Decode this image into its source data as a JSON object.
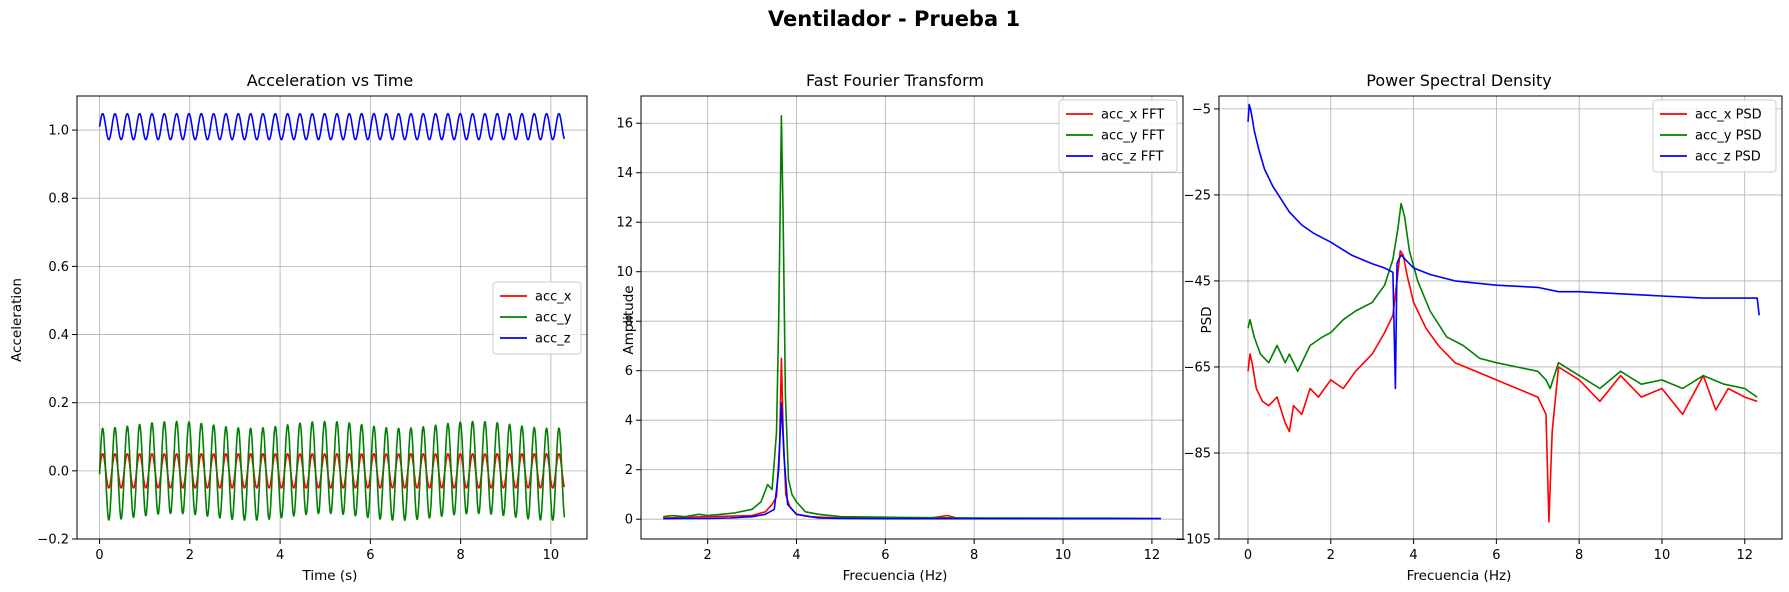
{
  "figure": {
    "suptitle": "Ventilador - Prueba 1"
  },
  "colors": {
    "x": "#ff0000",
    "y": "#008000",
    "z": "#0000ff"
  },
  "chart_data": [
    {
      "type": "line",
      "id": "time",
      "title": "Acceleration vs Time",
      "xlabel": "Time (s)",
      "ylabel": "Acceleration",
      "xlim": [
        -0.5,
        10.8
      ],
      "ylim": [
        -0.2,
        1.1
      ],
      "xticks": [
        0,
        2,
        4,
        6,
        8,
        10
      ],
      "yticks": [
        -0.2,
        0.0,
        0.2,
        0.4,
        0.6,
        0.8,
        1.0
      ],
      "ytick_labels": [
        "−0.2",
        "0.0",
        "0.2",
        "0.4",
        "0.6",
        "0.8",
        "1.0"
      ],
      "grid": true,
      "legend_position": "center-right",
      "signal": {
        "t_start": 0.0,
        "t_end": 10.3,
        "frequency_hz": 3.66
      },
      "series": [
        {
          "name": "acc_x",
          "color_key": "x",
          "offset": 0.0,
          "amplitude": 0.05
        },
        {
          "name": "acc_y",
          "color_key": "y",
          "offset": 0.0,
          "amplitude": 0.135
        },
        {
          "name": "acc_z",
          "color_key": "z",
          "offset": 1.01,
          "amplitude": 0.038
        }
      ]
    },
    {
      "type": "line",
      "id": "fft",
      "title": "Fast Fourier Transform",
      "xlabel": "Frecuencia (Hz)",
      "ylabel": "Amplitude",
      "xlim": [
        0.5,
        12.7
      ],
      "ylim": [
        -0.8,
        17.1
      ],
      "xticks": [
        2,
        4,
        6,
        8,
        10,
        12
      ],
      "yticks": [
        0,
        2,
        4,
        6,
        8,
        10,
        12,
        14,
        16
      ],
      "grid": true,
      "legend_position": "top-right",
      "series": [
        {
          "name": "acc_x FFT",
          "color_key": "x",
          "x": [
            1.0,
            1.5,
            2.0,
            2.5,
            3.0,
            3.3,
            3.45,
            3.55,
            3.62,
            3.66,
            3.7,
            3.76,
            3.85,
            4.0,
            4.3,
            5.0,
            6.0,
            7.0,
            7.4,
            7.6,
            8.0,
            9.0,
            10.0,
            11.0,
            12.2
          ],
          "y": [
            0.05,
            0.08,
            0.1,
            0.12,
            0.15,
            0.3,
            0.6,
            0.9,
            3.0,
            6.5,
            3.5,
            1.0,
            0.5,
            0.2,
            0.1,
            0.05,
            0.04,
            0.04,
            0.15,
            0.05,
            0.04,
            0.03,
            0.03,
            0.03,
            0.02
          ]
        },
        {
          "name": "acc_y FFT",
          "color_key": "y",
          "x": [
            1.0,
            1.2,
            1.5,
            1.8,
            2.0,
            2.3,
            2.6,
            3.0,
            3.2,
            3.35,
            3.45,
            3.55,
            3.6,
            3.66,
            3.7,
            3.75,
            3.82,
            3.9,
            4.0,
            4.2,
            4.5,
            5.0,
            6.0,
            7.0,
            8.0,
            9.0,
            10.0,
            11.0,
            12.2
          ],
          "y": [
            0.1,
            0.15,
            0.1,
            0.2,
            0.15,
            0.2,
            0.25,
            0.4,
            0.7,
            1.4,
            1.2,
            3.5,
            8.0,
            16.3,
            12.0,
            5.0,
            1.6,
            1.0,
            0.7,
            0.3,
            0.2,
            0.1,
            0.08,
            0.06,
            0.05,
            0.05,
            0.04,
            0.04,
            0.03
          ]
        },
        {
          "name": "acc_z FFT",
          "color_key": "z",
          "x": [
            1.0,
            1.5,
            2.0,
            2.5,
            3.0,
            3.3,
            3.5,
            3.6,
            3.66,
            3.72,
            3.8,
            4.0,
            4.5,
            5.0,
            6.0,
            8.0,
            10.0,
            12.2
          ],
          "y": [
            0.02,
            0.03,
            0.03,
            0.05,
            0.1,
            0.2,
            0.4,
            2.0,
            4.7,
            2.5,
            0.6,
            0.2,
            0.05,
            0.03,
            0.02,
            0.02,
            0.02,
            0.02
          ]
        }
      ]
    },
    {
      "type": "line",
      "id": "psd",
      "title": "Power Spectral Density",
      "xlabel": "Frecuencia (Hz)",
      "ylabel": "PSD",
      "xlim": [
        -0.7,
        12.9
      ],
      "ylim": [
        -105,
        -2
      ],
      "xticks": [
        0,
        2,
        4,
        6,
        8,
        10,
        12
      ],
      "yticks": [
        -105,
        -85,
        -65,
        -45,
        -25,
        -5
      ],
      "ytick_labels": [
        "−105",
        "−85",
        "−65",
        "−45",
        "−25",
        "−5"
      ],
      "grid": true,
      "legend_position": "top-right",
      "series": [
        {
          "name": "acc_x PSD",
          "color_key": "x",
          "x": [
            0.0,
            0.05,
            0.1,
            0.2,
            0.35,
            0.5,
            0.7,
            0.9,
            1.0,
            1.1,
            1.3,
            1.5,
            1.7,
            2.0,
            2.3,
            2.6,
            3.0,
            3.3,
            3.5,
            3.6,
            3.68,
            3.75,
            3.85,
            4.0,
            4.3,
            4.6,
            5.0,
            5.5,
            6.0,
            6.5,
            7.0,
            7.2,
            7.27,
            7.35,
            7.5,
            8.0,
            8.5,
            9.0,
            9.5,
            10.0,
            10.5,
            11.0,
            11.3,
            11.6,
            12.0,
            12.3
          ],
          "y": [
            -66,
            -62,
            -64,
            -70,
            -73,
            -74,
            -72,
            -78,
            -80,
            -74,
            -76,
            -70,
            -72,
            -68,
            -70,
            -66,
            -62,
            -57,
            -53,
            -45,
            -38,
            -39,
            -44,
            -50,
            -56,
            -60,
            -64,
            -66,
            -68,
            -70,
            -72,
            -76,
            -101,
            -80,
            -65,
            -68,
            -73,
            -67,
            -72,
            -70,
            -76,
            -67,
            -75,
            -70,
            -72,
            -73
          ]
        },
        {
          "name": "acc_y PSD",
          "color_key": "y",
          "x": [
            0.0,
            0.05,
            0.15,
            0.3,
            0.5,
            0.7,
            0.9,
            1.0,
            1.2,
            1.5,
            1.8,
            2.0,
            2.3,
            2.6,
            3.0,
            3.3,
            3.5,
            3.62,
            3.7,
            3.78,
            3.9,
            4.1,
            4.4,
            4.8,
            5.2,
            5.6,
            6.0,
            6.5,
            7.0,
            7.2,
            7.3,
            7.5,
            8.0,
            8.5,
            9.0,
            9.5,
            10.0,
            10.5,
            11.0,
            11.5,
            12.0,
            12.3
          ],
          "y": [
            -56,
            -54,
            -58,
            -62,
            -64,
            -60,
            -64,
            -62,
            -66,
            -60,
            -58,
            -57,
            -54,
            -52,
            -50,
            -46,
            -40,
            -33,
            -27,
            -30,
            -38,
            -45,
            -52,
            -58,
            -60,
            -63,
            -64,
            -65,
            -66,
            -68,
            -70,
            -64,
            -67,
            -70,
            -66,
            -69,
            -68,
            -70,
            -67,
            -69,
            -70,
            -72
          ]
        },
        {
          "name": "acc_z PSD",
          "color_key": "z",
          "x": [
            0.0,
            0.03,
            0.06,
            0.1,
            0.15,
            0.25,
            0.4,
            0.6,
            0.8,
            1.0,
            1.3,
            1.6,
            2.0,
            2.5,
            3.0,
            3.3,
            3.5,
            3.56,
            3.6,
            3.64,
            3.7,
            3.8,
            4.0,
            4.4,
            5.0,
            6.0,
            7.0,
            7.5,
            8.0,
            9.0,
            10.0,
            11.0,
            12.0,
            12.3,
            12.35
          ],
          "y": [
            -8,
            -4,
            -5,
            -7,
            -10,
            -14,
            -19,
            -23,
            -26,
            -29,
            -32,
            -34,
            -36,
            -39,
            -41,
            -42,
            -43,
            -70,
            -41,
            -40,
            -39,
            -40,
            -42,
            -43.5,
            -45,
            -46,
            -46.5,
            -47.5,
            -47.5,
            -48,
            -48.5,
            -49,
            -49,
            -49,
            -53
          ]
        }
      ]
    }
  ]
}
